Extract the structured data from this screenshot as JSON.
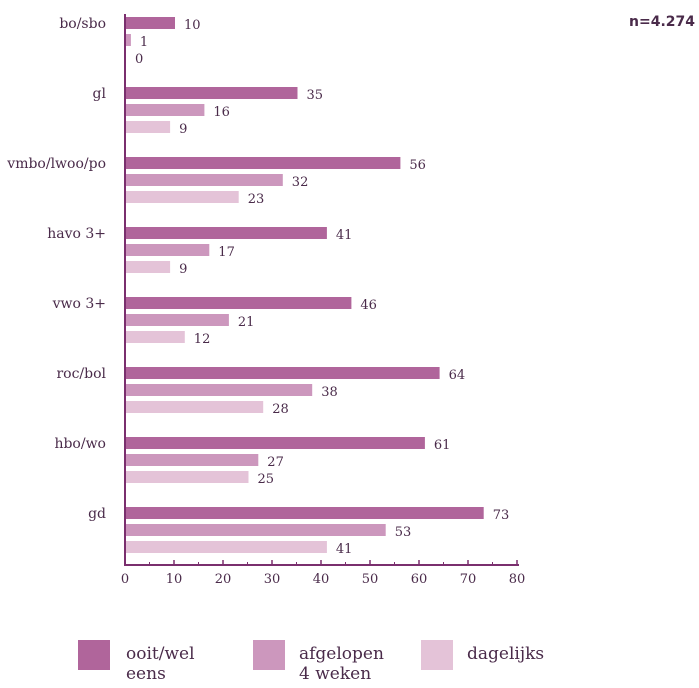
{
  "chart_data": {
    "type": "bar",
    "orientation": "horizontal",
    "categories": [
      "bo/sbo",
      "gl",
      "vmbo/lwoo/po",
      "havo 3+",
      "vwo 3+",
      "roc/bol",
      "hbo/wo",
      "gd"
    ],
    "series": [
      {
        "name": "ooit/wel eens",
        "color": "#b0659b",
        "values": [
          10,
          35,
          56,
          41,
          46,
          64,
          61,
          73
        ]
      },
      {
        "name": "afgelopen\n4 weken",
        "color": "#cc97bd",
        "values": [
          1,
          16,
          32,
          17,
          21,
          38,
          27,
          53
        ]
      },
      {
        "name": "dagelijks",
        "color": "#e4c3d8",
        "values": [
          0,
          9,
          23,
          9,
          12,
          28,
          25,
          41
        ]
      }
    ],
    "xlim": [
      0,
      80
    ],
    "xticks": [
      0,
      10,
      20,
      30,
      40,
      50,
      60,
      70,
      80
    ],
    "grid": false,
    "legend_position": "bottom",
    "annotation": "n=4.274"
  }
}
